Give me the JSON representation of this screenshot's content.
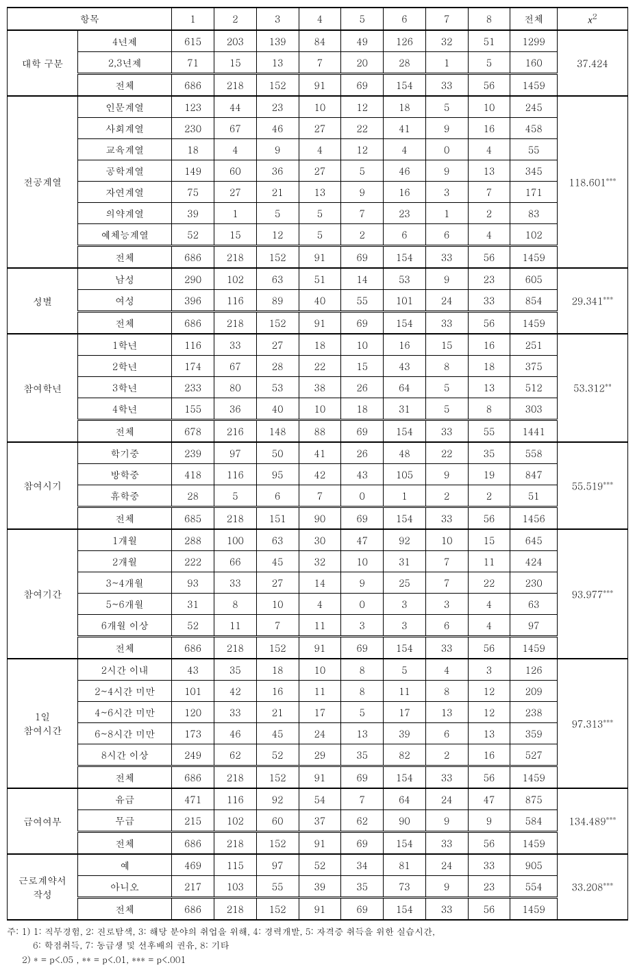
{
  "header": {
    "col_group": "항목",
    "cols": [
      "1",
      "2",
      "3",
      "4",
      "5",
      "6",
      "7",
      "8",
      "전체"
    ],
    "chi": "x²"
  },
  "groups": [
    {
      "name": "대학 구분",
      "chi": "37.424",
      "sig": "",
      "rows": [
        {
          "label": "4년제",
          "vals": [
            "615",
            "203",
            "139",
            "84",
            "49",
            "126",
            "32",
            "51",
            "1299"
          ]
        },
        {
          "label": "2,3년제",
          "vals": [
            "71",
            "15",
            "13",
            "7",
            "20",
            "28",
            "1",
            "5",
            "160"
          ]
        },
        {
          "label": "전체",
          "vals": [
            "686",
            "218",
            "152",
            "91",
            "69",
            "154",
            "33",
            "56",
            "1459"
          ],
          "total": true
        }
      ]
    },
    {
      "name": "전공계열",
      "chi": "118.601",
      "sig": "***",
      "rows": [
        {
          "label": "인문계열",
          "vals": [
            "123",
            "44",
            "23",
            "10",
            "12",
            "18",
            "5",
            "10",
            "245"
          ]
        },
        {
          "label": "사회계열",
          "vals": [
            "230",
            "67",
            "46",
            "27",
            "22",
            "41",
            "9",
            "16",
            "458"
          ]
        },
        {
          "label": "교육계열",
          "vals": [
            "18",
            "4",
            "9",
            "4",
            "12",
            "4",
            "0",
            "4",
            "55"
          ]
        },
        {
          "label": "공학계열",
          "vals": [
            "149",
            "60",
            "36",
            "27",
            "5",
            "46",
            "9",
            "13",
            "345"
          ]
        },
        {
          "label": "자연계열",
          "vals": [
            "75",
            "27",
            "21",
            "13",
            "9",
            "16",
            "3",
            "7",
            "171"
          ]
        },
        {
          "label": "의약계열",
          "vals": [
            "39",
            "1",
            "5",
            "5",
            "7",
            "23",
            "1",
            "2",
            "83"
          ]
        },
        {
          "label": "예체능계열",
          "vals": [
            "52",
            "15",
            "12",
            "5",
            "2",
            "6",
            "6",
            "4",
            "102"
          ]
        },
        {
          "label": "전체",
          "vals": [
            "686",
            "218",
            "152",
            "91",
            "69",
            "154",
            "33",
            "56",
            "1459"
          ],
          "total": true
        }
      ]
    },
    {
      "name": "성별",
      "chi": "29.341",
      "sig": "***",
      "rows": [
        {
          "label": "남성",
          "vals": [
            "290",
            "102",
            "63",
            "51",
            "14",
            "53",
            "9",
            "23",
            "605"
          ]
        },
        {
          "label": "여성",
          "vals": [
            "396",
            "116",
            "89",
            "40",
            "55",
            "101",
            "24",
            "33",
            "854"
          ]
        },
        {
          "label": "전체",
          "vals": [
            "686",
            "218",
            "152",
            "91",
            "69",
            "154",
            "33",
            "56",
            "1459"
          ],
          "total": true
        }
      ]
    },
    {
      "name": "참여학년",
      "chi": "53.312",
      "sig": "**",
      "rows": [
        {
          "label": "1학년",
          "vals": [
            "116",
            "33",
            "27",
            "18",
            "10",
            "16",
            "15",
            "16",
            "251"
          ]
        },
        {
          "label": "2학년",
          "vals": [
            "174",
            "67",
            "28",
            "22",
            "15",
            "43",
            "8",
            "18",
            "375"
          ]
        },
        {
          "label": "3학년",
          "vals": [
            "233",
            "80",
            "53",
            "38",
            "26",
            "64",
            "5",
            "13",
            "512"
          ]
        },
        {
          "label": "4학년",
          "vals": [
            "155",
            "36",
            "40",
            "10",
            "18",
            "31",
            "5",
            "8",
            "303"
          ]
        },
        {
          "label": "전체",
          "vals": [
            "678",
            "216",
            "148",
            "88",
            "69",
            "154",
            "33",
            "55",
            "1441"
          ],
          "total": true
        }
      ]
    },
    {
      "name": "참여시기",
      "chi": "55.519",
      "sig": "***",
      "rows": [
        {
          "label": "학기중",
          "vals": [
            "239",
            "97",
            "50",
            "41",
            "26",
            "48",
            "22",
            "35",
            "558"
          ]
        },
        {
          "label": "방학중",
          "vals": [
            "418",
            "116",
            "95",
            "42",
            "43",
            "105",
            "9",
            "19",
            "847"
          ]
        },
        {
          "label": "휴학중",
          "vals": [
            "28",
            "5",
            "6",
            "7",
            "0",
            "1",
            "2",
            "2",
            "51"
          ]
        },
        {
          "label": "전체",
          "vals": [
            "685",
            "218",
            "151",
            "90",
            "69",
            "154",
            "33",
            "56",
            "1456"
          ],
          "total": true
        }
      ]
    },
    {
      "name": "참여기간",
      "chi": "93.977",
      "sig": "***",
      "rows": [
        {
          "label": "1개월",
          "vals": [
            "288",
            "100",
            "63",
            "30",
            "47",
            "92",
            "10",
            "15",
            "645"
          ]
        },
        {
          "label": "2개월",
          "vals": [
            "222",
            "66",
            "45",
            "32",
            "10",
            "31",
            "7",
            "11",
            "424"
          ]
        },
        {
          "label": "3~4개월",
          "vals": [
            "93",
            "33",
            "27",
            "14",
            "9",
            "25",
            "7",
            "22",
            "230"
          ]
        },
        {
          "label": "5~6개월",
          "vals": [
            "31",
            "8",
            "10",
            "4",
            "0",
            "3",
            "3",
            "4",
            "63"
          ]
        },
        {
          "label": "6개월 이상",
          "vals": [
            "52",
            "11",
            "7",
            "11",
            "3",
            "3",
            "6",
            "4",
            "97"
          ]
        },
        {
          "label": "전체",
          "vals": [
            "686",
            "218",
            "152",
            "91",
            "69",
            "154",
            "33",
            "56",
            "1459"
          ],
          "total": true
        }
      ]
    },
    {
      "name": "1일\n참여시간",
      "chi": "97.313",
      "sig": "***",
      "rows": [
        {
          "label": "2시간 이내",
          "vals": [
            "43",
            "35",
            "18",
            "10",
            "8",
            "5",
            "4",
            "3",
            "126"
          ]
        },
        {
          "label": "2~4시간 미만",
          "vals": [
            "101",
            "42",
            "16",
            "11",
            "8",
            "11",
            "8",
            "12",
            "209"
          ]
        },
        {
          "label": "4~6시간 미만",
          "vals": [
            "120",
            "33",
            "21",
            "17",
            "5",
            "17",
            "13",
            "12",
            "238"
          ]
        },
        {
          "label": "6~8시간 미만",
          "vals": [
            "173",
            "46",
            "45",
            "24",
            "13",
            "39",
            "6",
            "13",
            "359"
          ]
        },
        {
          "label": "8시간 이상",
          "vals": [
            "249",
            "62",
            "52",
            "29",
            "35",
            "82",
            "2",
            "16",
            "527"
          ]
        },
        {
          "label": "전체",
          "vals": [
            "686",
            "218",
            "152",
            "91",
            "69",
            "154",
            "33",
            "56",
            "1459"
          ],
          "total": true
        }
      ]
    },
    {
      "name": "급여여부",
      "chi": "134.489",
      "sig": "***",
      "rows": [
        {
          "label": "유급",
          "vals": [
            "471",
            "116",
            "92",
            "54",
            "7",
            "64",
            "24",
            "47",
            "875"
          ]
        },
        {
          "label": "무급",
          "vals": [
            "215",
            "102",
            "60",
            "37",
            "62",
            "90",
            "9",
            "9",
            "584"
          ]
        },
        {
          "label": "전체",
          "vals": [
            "686",
            "218",
            "152",
            "91",
            "69",
            "154",
            "33",
            "56",
            "1459"
          ],
          "total": true
        }
      ]
    },
    {
      "name": "근로계약서\n작성",
      "chi": "33.208",
      "sig": "***",
      "rows": [
        {
          "label": "예",
          "vals": [
            "469",
            "115",
            "97",
            "52",
            "34",
            "81",
            "24",
            "33",
            "905"
          ]
        },
        {
          "label": "아니오",
          "vals": [
            "217",
            "103",
            "55",
            "39",
            "35",
            "73",
            "9",
            "23",
            "554"
          ]
        },
        {
          "label": "전체",
          "vals": [
            "686",
            "218",
            "152",
            "91",
            "69",
            "154",
            "33",
            "56",
            "1459"
          ],
          "total": true
        }
      ]
    }
  ],
  "notes": {
    "line1_prefix": "주: 1) ",
    "line1": "1: 직무경험, 2: 진로탐색, 3: 해당 분야의 취업을 위해, 4: 경력개발, 5: 자격증 취득을 위한 실습시간,",
    "line1b": "6: 학점취득, 7: 동급생 및 선후배의 권유, 8: 기타",
    "line2_prefix": "2) ",
    "line2": "* = p<.05 , ** = p<.01, *** = p<.001"
  }
}
